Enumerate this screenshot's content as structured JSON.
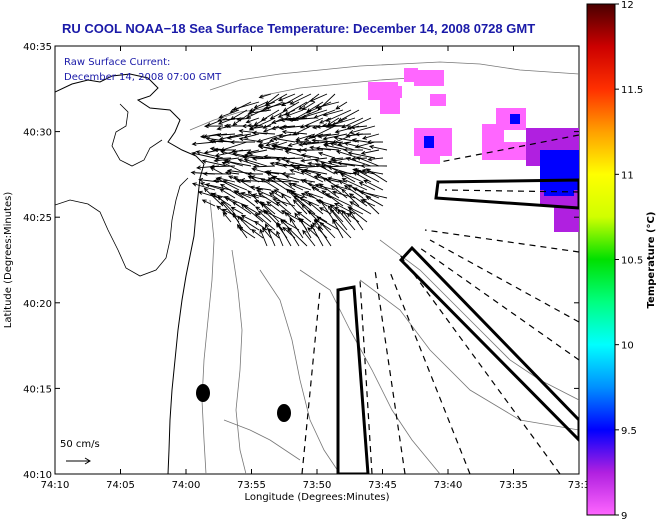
{
  "chart_data": {
    "type": "map",
    "title": "RU COOL  NOAA−18  Sea Surface Temperature:  December 14, 2008 0728 GMT",
    "annotation_lines": [
      "Raw Surface Current:",
      "December 14, 2008 07:00 GMT"
    ],
    "xlabel": "Longitude (Degrees:Minutes)",
    "ylabel": "Latitude (Degrees:Minutes)",
    "x_ticks": [
      "74:10",
      "74:05",
      "74:00",
      "73:55",
      "73:50",
      "73:45",
      "73:40",
      "73:35",
      "73:3"
    ],
    "y_ticks": [
      "40:35",
      "40:30",
      "40:25",
      "40:20",
      "40:15",
      "40:10"
    ],
    "x_range_minutes_west": [
      10,
      30
    ],
    "y_range_minutes_north": [
      10,
      35
    ],
    "scale_label": "50 cm/s",
    "colorbar": {
      "label": "Temperature (°C)",
      "range": [
        9,
        12
      ],
      "ticks": [
        "12",
        "11.5",
        "11",
        "10.5",
        "10",
        "9.5",
        "9"
      ],
      "colors": [
        "#ff66ff",
        "#b020e0",
        "#0000ff",
        "#0090ff",
        "#00ffff",
        "#00ff80",
        "#00e000",
        "#d0ff00",
        "#ffff00",
        "#ffa000",
        "#ff3000",
        "#cc0000",
        "#4a0000"
      ]
    },
    "sst_patches_celsius": [
      9.1,
      9.1,
      9.1,
      9.2,
      9.4,
      9.1
    ]
  }
}
